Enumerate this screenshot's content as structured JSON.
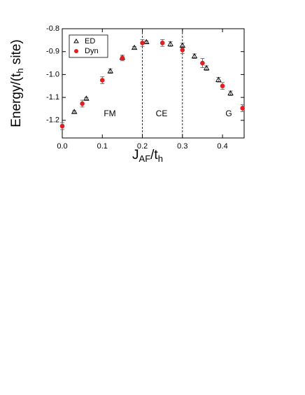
{
  "chart_data": {
    "type": "scatter",
    "xlabel": [
      "J",
      "AF",
      "/t",
      "h"
    ],
    "ylabel": [
      "Energy/(t",
      "h",
      " site)"
    ],
    "xlim": [
      0,
      0.454
    ],
    "ylim": [
      -1.277,
      -0.8
    ],
    "xticks": [
      {
        "value": 0,
        "label": "0.0"
      },
      0.1,
      0.2,
      0.3,
      0.4
    ],
    "yticks": [
      -0.8,
      -0.9,
      {
        "value": -1.0,
        "label": "-1.0"
      },
      -1.1,
      -1.2
    ],
    "vlines": [
      0.2,
      0.3
    ],
    "annotations": [
      "FM",
      "CE",
      "G"
    ],
    "legend": "upper left",
    "series": [
      {
        "name": "ED",
        "color": "#000000",
        "marker": "open-triangle",
        "x": [
          0.03,
          0.06,
          0.12,
          0.15,
          0.18,
          0.21,
          0.27,
          0.3,
          0.33,
          0.36,
          0.39,
          0.42
        ],
        "values": [
          -1.163,
          -1.105,
          -0.985,
          -0.926,
          -0.883,
          -0.858,
          -0.867,
          -0.873,
          -0.92,
          -0.972,
          -1.023,
          -1.082
        ],
        "errors": [
          0.005,
          0.005,
          0.01,
          0.01,
          0.005,
          0.005,
          0.01,
          0.01,
          0.01,
          0.01,
          0.01,
          0.01
        ]
      },
      {
        "name": "Dyn",
        "color": "#e02020",
        "marker": "filled-circle",
        "x": [
          0.0,
          0.05,
          0.1,
          0.15,
          0.2,
          0.25,
          0.3,
          0.35,
          0.4,
          0.45
        ],
        "values": [
          -1.225,
          -1.127,
          -1.025,
          -0.928,
          -0.862,
          -0.862,
          -0.893,
          -0.95,
          -1.05,
          -1.147
        ],
        "errors": [
          0.015,
          0.015,
          0.015,
          0.012,
          0.015,
          0.015,
          0.015,
          0.02,
          0.015,
          0.015
        ]
      }
    ]
  }
}
